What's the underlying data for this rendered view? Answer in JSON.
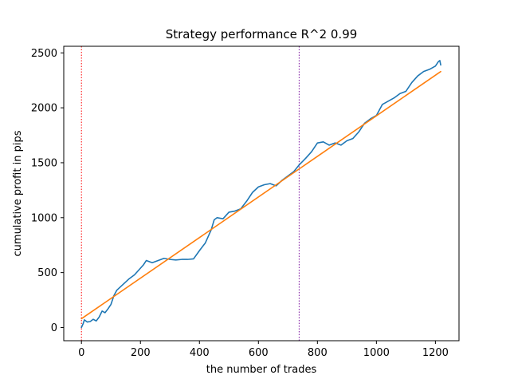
{
  "chart_data": {
    "type": "line",
    "title": "Strategy performance R^2 0.99",
    "xlabel": "the number of trades",
    "ylabel": "cumulative profit in pips",
    "xlim": [
      -60,
      1280
    ],
    "ylim": [
      -120,
      2560
    ],
    "x_ticks": [
      0,
      200,
      400,
      600,
      800,
      1000,
      1200
    ],
    "y_ticks": [
      0,
      500,
      1000,
      1500,
      2000,
      2500
    ],
    "grid": false,
    "vlines": [
      {
        "x": 0,
        "color": "#ff0000",
        "style": "dotted"
      },
      {
        "x": 738,
        "color": "#7a0f9e",
        "style": "dotted"
      }
    ],
    "series": [
      {
        "color": "#1f77b4",
        "x": [
          0,
          5,
          10,
          20,
          30,
          40,
          50,
          60,
          70,
          80,
          90,
          100,
          110,
          120,
          140,
          160,
          180,
          200,
          210,
          220,
          240,
          260,
          280,
          300,
          320,
          340,
          360,
          380,
          400,
          420,
          440,
          450,
          460,
          480,
          500,
          520,
          540,
          560,
          580,
          600,
          620,
          640,
          660,
          680,
          700,
          720,
          738,
          760,
          780,
          800,
          820,
          840,
          860,
          880,
          900,
          920,
          940,
          960,
          980,
          1000,
          1020,
          1040,
          1060,
          1080,
          1100,
          1120,
          1140,
          1160,
          1180,
          1200,
          1210,
          1215,
          1218
        ],
        "values": [
          0,
          30,
          70,
          50,
          55,
          75,
          60,
          95,
          150,
          135,
          170,
          210,
          290,
          340,
          390,
          440,
          480,
          540,
          570,
          610,
          590,
          610,
          630,
          620,
          615,
          620,
          620,
          625,
          700,
          770,
          890,
          980,
          1000,
          990,
          1050,
          1060,
          1080,
          1150,
          1230,
          1280,
          1300,
          1310,
          1290,
          1340,
          1380,
          1420,
          1480,
          1540,
          1600,
          1680,
          1690,
          1660,
          1680,
          1660,
          1700,
          1720,
          1780,
          1860,
          1900,
          1930,
          2030,
          2060,
          2090,
          2130,
          2150,
          2230,
          2290,
          2330,
          2350,
          2380,
          2420,
          2430,
          2390
        ]
      },
      {
        "color": "#ff7f0e",
        "x": [
          0,
          1218
        ],
        "values": [
          80,
          2330
        ]
      }
    ]
  }
}
